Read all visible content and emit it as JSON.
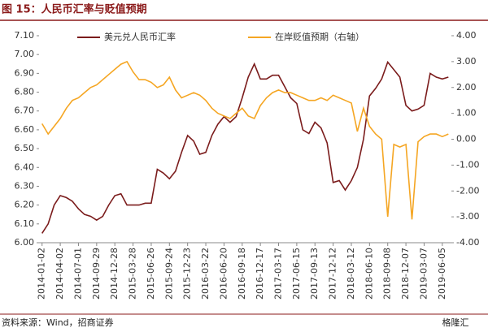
{
  "header": {
    "title": "图 15：人民币汇率与贬值预期"
  },
  "chart_data": {
    "type": "line",
    "categories": [
      "2014-01-02",
      null,
      null,
      "2014-04-02",
      null,
      null,
      "2014-07-01",
      null,
      null,
      "2014-09-29",
      null,
      null,
      "2014-12-28",
      null,
      null,
      "2015-03-28",
      null,
      null,
      "2015-06-26",
      null,
      null,
      "2015-09-24",
      null,
      null,
      "2015-12-23",
      null,
      null,
      "2016-03-22",
      null,
      null,
      "2016-06-20",
      null,
      null,
      "2016-09-18",
      null,
      null,
      "2016-12-17",
      null,
      null,
      "2017-03-17",
      null,
      null,
      "2017-06-15",
      null,
      null,
      "2017-09-13",
      null,
      null,
      "2017-12-12",
      null,
      null,
      "2018-03-12",
      null,
      null,
      "2018-06-10",
      null,
      null,
      "2018-09-08",
      null,
      null,
      "2018-12-07",
      null,
      null,
      "2019-03-07",
      null,
      null,
      "2019-06-05",
      null
    ],
    "series": [
      {
        "name": "美元兑人民币汇率",
        "color": "#7b1c1c",
        "values": [
          6.05,
          6.1,
          6.2,
          6.25,
          6.24,
          6.22,
          6.18,
          6.15,
          6.14,
          6.12,
          6.14,
          6.2,
          6.25,
          6.26,
          6.2,
          6.2,
          6.2,
          6.21,
          6.21,
          6.39,
          6.37,
          6.34,
          6.38,
          6.48,
          6.57,
          6.54,
          6.47,
          6.48,
          6.57,
          6.63,
          6.67,
          6.64,
          6.67,
          6.77,
          6.88,
          6.95,
          6.87,
          6.87,
          6.89,
          6.89,
          6.83,
          6.77,
          6.74,
          6.6,
          6.58,
          6.64,
          6.61,
          6.53,
          6.32,
          6.33,
          6.28,
          6.33,
          6.4,
          6.55,
          6.78,
          6.82,
          6.87,
          6.96,
          6.92,
          6.88,
          6.73,
          6.7,
          6.71,
          6.73,
          6.9,
          6.88,
          6.87,
          6.88
        ]
      },
      {
        "name": "在岸贬值预期（右轴）",
        "color": "#f5a623",
        "axis": "y2",
        "values": [
          0.6,
          0.2,
          0.5,
          0.8,
          1.2,
          1.5,
          1.6,
          1.8,
          2.0,
          2.1,
          2.3,
          2.5,
          2.7,
          2.9,
          3.0,
          2.6,
          2.3,
          2.3,
          2.2,
          2.0,
          2.1,
          2.4,
          1.9,
          1.6,
          1.7,
          1.8,
          1.7,
          1.5,
          1.2,
          1.0,
          0.9,
          0.8,
          1.0,
          1.2,
          0.9,
          0.8,
          1.3,
          1.6,
          1.8,
          1.9,
          1.8,
          1.8,
          1.7,
          1.6,
          1.5,
          1.5,
          1.6,
          1.5,
          1.7,
          1.6,
          1.5,
          1.4,
          0.3,
          1.2,
          0.5,
          0.2,
          0.0,
          -3.0,
          -0.2,
          -0.3,
          -0.2,
          -3.1,
          -0.1,
          0.1,
          0.2,
          0.2,
          0.1,
          0.2
        ]
      }
    ],
    "ylim": [
      6.0,
      7.1
    ],
    "yticks": [
      {
        "value": 6.0,
        "label": "6.00"
      },
      {
        "value": 6.1,
        "label": "6.10"
      },
      {
        "value": 6.2,
        "label": "6.20"
      },
      {
        "value": 6.3,
        "label": "6.30"
      },
      {
        "value": 6.4,
        "label": "6.40"
      },
      {
        "value": 6.5,
        "label": "6.50"
      },
      {
        "value": 6.6,
        "label": "6.60"
      },
      {
        "value": 6.7,
        "label": "6.70"
      },
      {
        "value": 6.8,
        "label": "6.80"
      },
      {
        "value": 6.9,
        "label": "6.90"
      },
      {
        "value": 7.0,
        "label": "7.00"
      },
      {
        "value": 7.1,
        "label": "7.10"
      }
    ],
    "y2lim": [
      -4,
      4
    ],
    "y2ticks": [
      {
        "value": -4,
        "label": "-4.00"
      },
      {
        "value": -3,
        "label": "-3.00"
      },
      {
        "value": -2,
        "label": "-2.00"
      },
      {
        "value": -1,
        "label": "-1.00"
      },
      {
        "value": 0,
        "label": "0.00"
      },
      {
        "value": 1,
        "label": "1.00"
      },
      {
        "value": 2,
        "label": "2.00"
      },
      {
        "value": 3,
        "label": "3.00"
      },
      {
        "value": 4,
        "label": "4.00"
      }
    ]
  },
  "footer": {
    "source": "资料来源：Wind，招商证券",
    "watermark": "格隆汇"
  }
}
